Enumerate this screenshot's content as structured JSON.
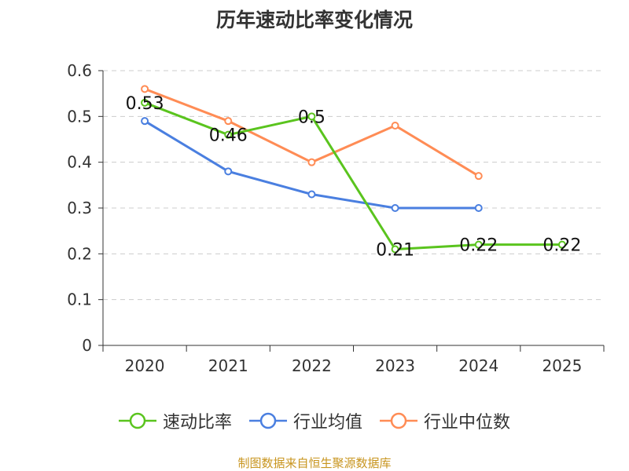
{
  "chart_data": {
    "type": "line",
    "title": "历年速动比率变化情况",
    "categories": [
      "2020",
      "2021",
      "2022",
      "2023",
      "2024",
      "2025"
    ],
    "ylim": [
      0,
      0.6
    ],
    "yticks": [
      "0",
      "0.1",
      "0.2",
      "0.3",
      "0.4",
      "0.5",
      "0.6"
    ],
    "grid": true,
    "legend_position": "bottom",
    "series": [
      {
        "name": "速动比率",
        "color": "#5ac41e",
        "values": [
          0.53,
          0.46,
          0.5,
          0.21,
          0.22,
          0.22
        ],
        "labels": [
          "0.53",
          "0.46",
          "0.5",
          "0.21",
          "0.22",
          "0.22"
        ]
      },
      {
        "name": "行业均值",
        "color": "#4a7fe0",
        "values": [
          0.49,
          0.38,
          0.33,
          0.3,
          0.3,
          null
        ]
      },
      {
        "name": "行业中位数",
        "color": "#ff8c55",
        "values": [
          0.56,
          0.49,
          0.4,
          0.48,
          0.37,
          null
        ]
      }
    ]
  },
  "source": "制图数据来自恒生聚源数据库"
}
